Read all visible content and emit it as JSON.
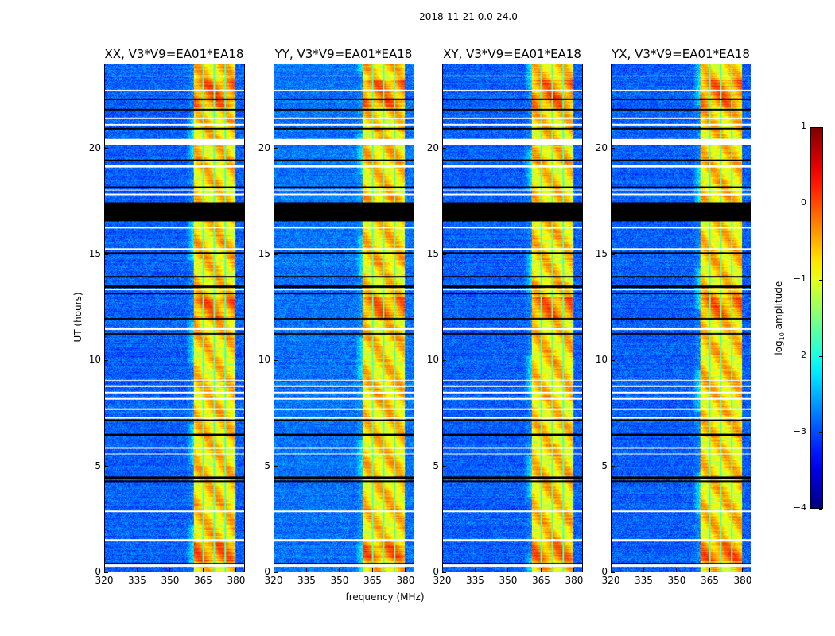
{
  "chart_data": {
    "type": "heatmap",
    "title": "2018-11-21 0.0-24.0",
    "xlabel": "frequency (MHz)",
    "ylabel": "UT (hours)",
    "xlim": [
      320,
      384
    ],
    "ylim": [
      0,
      24
    ],
    "xticks": [
      320,
      335,
      350,
      365,
      380
    ],
    "yticks": [
      0,
      5,
      10,
      15,
      20
    ],
    "panels": [
      {
        "title": "XX, V3*V9=EA01*EA18",
        "band_mhz": [
          360.5,
          380
        ],
        "background_log_amp": -2.9
      },
      {
        "title": "YY, V3*V9=EA01*EA18",
        "band_mhz": [
          360.5,
          380
        ],
        "background_log_amp": -2.8
      },
      {
        "title": "XY, V3*V9=EA01*EA18",
        "band_mhz": [
          360.5,
          380
        ],
        "background_log_amp": -2.9
      },
      {
        "title": "YX, V3*V9=EA01*EA18",
        "band_mhz": [
          360.5,
          380
        ],
        "background_log_amp": -2.9
      }
    ],
    "band_dividers_mhz": [
      365,
      370,
      375
    ],
    "blank_intervals_hours": [
      [
        0.25,
        0.35
      ],
      [
        1.45,
        1.55
      ],
      [
        2.85,
        2.92
      ],
      [
        5.55,
        5.62
      ],
      [
        5.85,
        5.92
      ],
      [
        7.25,
        7.32
      ],
      [
        7.65,
        7.75
      ],
      [
        8.15,
        8.22
      ],
      [
        8.45,
        8.52
      ],
      [
        8.75,
        8.82
      ],
      [
        9.05,
        9.1
      ],
      [
        11.45,
        11.55
      ],
      [
        13.35,
        13.4
      ],
      [
        15.25,
        15.32
      ],
      [
        16.25,
        16.32
      ],
      [
        17.85,
        17.92
      ],
      [
        18.05,
        18.1
      ],
      [
        19.15,
        19.25
      ],
      [
        20.2,
        20.5
      ],
      [
        21.15,
        21.22
      ],
      [
        21.45,
        21.52
      ],
      [
        22.75,
        22.82
      ],
      [
        23.45,
        23.5
      ]
    ],
    "flagged_intervals_hours": [
      [
        0.38,
        0.45
      ],
      [
        4.25,
        4.35
      ],
      [
        4.42,
        4.5
      ],
      [
        6.45,
        6.55
      ],
      [
        7.15,
        7.22
      ],
      [
        11.25,
        11.32
      ],
      [
        11.95,
        12.02
      ],
      [
        13.15,
        13.22
      ],
      [
        13.45,
        13.55
      ],
      [
        13.95,
        14.02
      ],
      [
        15.05,
        15.12
      ],
      [
        16.6,
        17.5
      ],
      [
        18.18,
        18.25
      ],
      [
        19.45,
        19.52
      ],
      [
        20.95,
        21.02
      ],
      [
        21.85,
        21.92
      ],
      [
        22.35,
        22.42
      ]
    ],
    "colorbar": {
      "label_prefix": "log",
      "label_sub": "10",
      "label_suffix": " amplitude",
      "range": [
        -4,
        1
      ],
      "ticks": [
        1,
        0,
        -1,
        -2,
        -3,
        -4
      ],
      "tick_labels": [
        "1",
        "0",
        "−1",
        "−2",
        "−3",
        "−4"
      ],
      "colormap": "jet"
    }
  }
}
